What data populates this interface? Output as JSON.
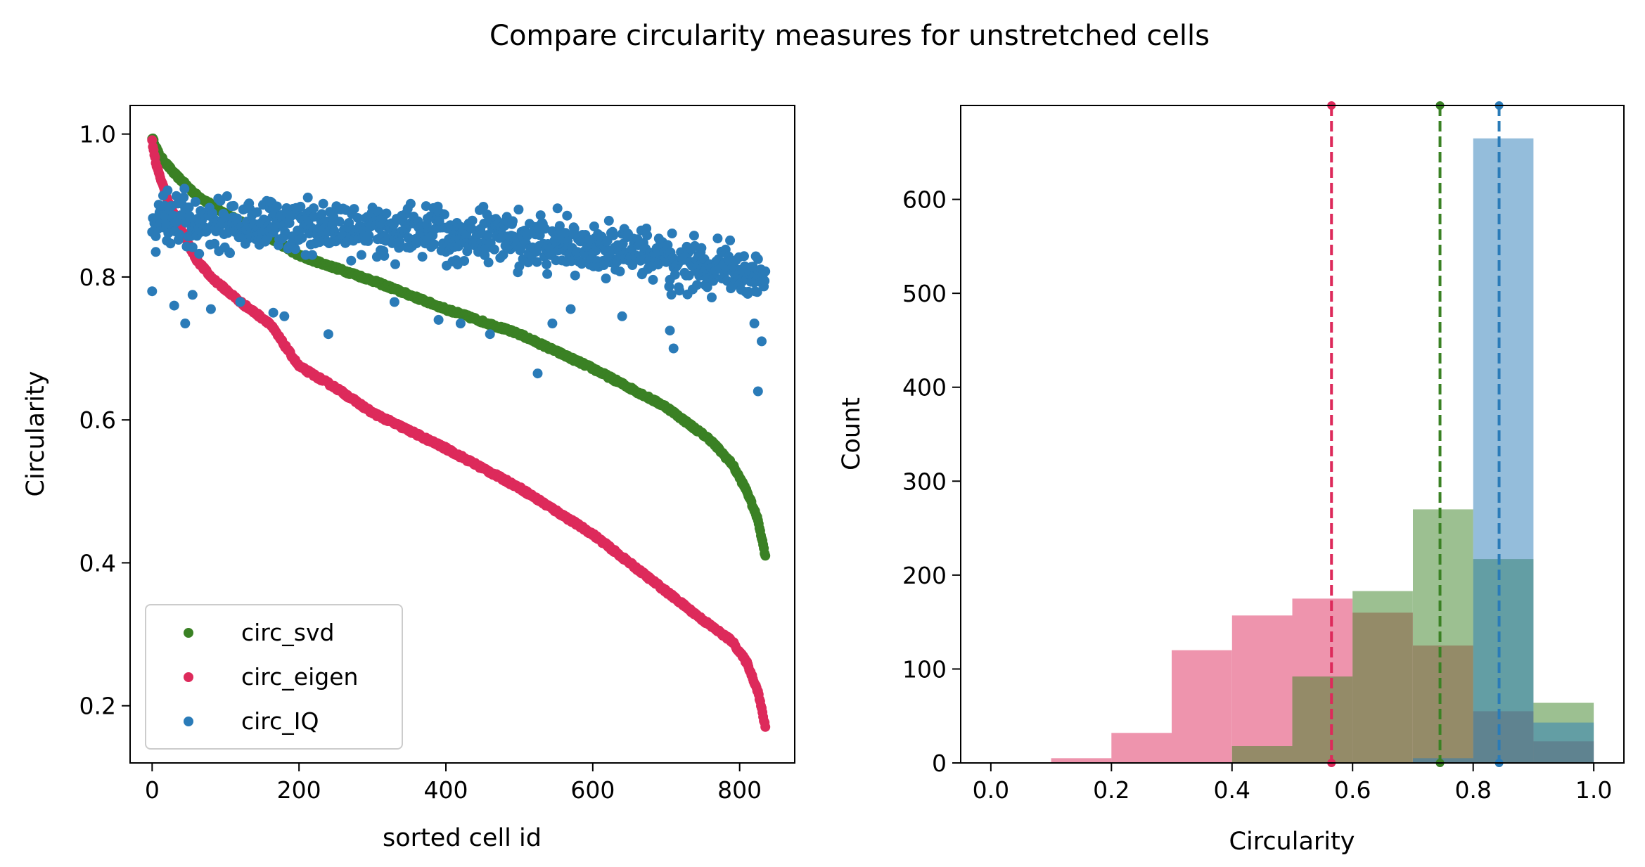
{
  "suptitle": "Compare circularity measures for unstretched cells",
  "colors": {
    "circ_svd": "#3a8124",
    "circ_eigen": "#dd2a5b",
    "circ_IQ": "#2a7bb8"
  },
  "chart_data": [
    {
      "type": "scatter",
      "xlabel": "sorted cell id",
      "ylabel": "Circularity",
      "xlim": [
        -30,
        875
      ],
      "ylim": [
        0.12,
        1.04
      ],
      "x_ticks": [
        0,
        200,
        400,
        600,
        800
      ],
      "y_ticks": [
        0.2,
        0.4,
        0.6,
        0.8,
        1.0
      ],
      "x_tick_labels": [
        "0",
        "200",
        "400",
        "600",
        "800"
      ],
      "y_tick_labels": [
        "0.2",
        "0.4",
        "0.6",
        "0.8",
        "1.0"
      ],
      "n_points": 836,
      "legend_position": "lower-left",
      "legend": [
        "circ_svd",
        "circ_eigen",
        "circ_IQ"
      ],
      "series": [
        {
          "name": "circ_svd",
          "color": "#3a8124",
          "sorted": true,
          "knots": [
            [
              0,
              0.995
            ],
            [
              10,
              0.97
            ],
            [
              30,
              0.945
            ],
            [
              60,
              0.915
            ],
            [
              100,
              0.888
            ],
            [
              150,
              0.862
            ],
            [
              200,
              0.83
            ],
            [
              300,
              0.795
            ],
            [
              400,
              0.755
            ],
            [
              500,
              0.72
            ],
            [
              600,
              0.672
            ],
            [
              700,
              0.618
            ],
            [
              760,
              0.572
            ],
            [
              790,
              0.538
            ],
            [
              810,
              0.5
            ],
            [
              825,
              0.46
            ],
            [
              836,
              0.405
            ]
          ]
        },
        {
          "name": "circ_eigen",
          "color": "#dd2a5b",
          "sorted": true,
          "knots": [
            [
              0,
              0.99
            ],
            [
              5,
              0.96
            ],
            [
              20,
              0.91
            ],
            [
              40,
              0.865
            ],
            [
              60,
              0.825
            ],
            [
              80,
              0.8
            ],
            [
              120,
              0.765
            ],
            [
              160,
              0.735
            ],
            [
              200,
              0.675
            ],
            [
              250,
              0.645
            ],
            [
              300,
              0.61
            ],
            [
              400,
              0.56
            ],
            [
              500,
              0.505
            ],
            [
              600,
              0.44
            ],
            [
              650,
              0.4
            ],
            [
              700,
              0.36
            ],
            [
              750,
              0.32
            ],
            [
              790,
              0.29
            ],
            [
              810,
              0.26
            ],
            [
              825,
              0.22
            ],
            [
              836,
              0.165
            ]
          ]
        },
        {
          "name": "circ_IQ",
          "color": "#2a7bb8",
          "sorted": false,
          "center_knots": [
            [
              0,
              0.88
            ],
            [
              50,
              0.875
            ],
            [
              100,
              0.875
            ],
            [
              200,
              0.87
            ],
            [
              300,
              0.865
            ],
            [
              400,
              0.86
            ],
            [
              500,
              0.852
            ],
            [
              600,
              0.838
            ],
            [
              700,
              0.825
            ],
            [
              800,
              0.81
            ],
            [
              836,
              0.79
            ]
          ],
          "spread": 0.035,
          "outliers": [
            [
              0,
              0.78
            ],
            [
              5,
              0.835
            ],
            [
              30,
              0.76
            ],
            [
              45,
              0.735
            ],
            [
              55,
              0.775
            ],
            [
              80,
              0.755
            ],
            [
              120,
              0.765
            ],
            [
              165,
              0.75
            ],
            [
              180,
              0.745
            ],
            [
              240,
              0.72
            ],
            [
              330,
              0.765
            ],
            [
              390,
              0.74
            ],
            [
              420,
              0.735
            ],
            [
              460,
              0.72
            ],
            [
              525,
              0.665
            ],
            [
              545,
              0.735
            ],
            [
              570,
              0.755
            ],
            [
              640,
              0.745
            ],
            [
              705,
              0.725
            ],
            [
              710,
              0.7
            ],
            [
              820,
              0.735
            ],
            [
              825,
              0.64
            ],
            [
              830,
              0.71
            ]
          ]
        }
      ]
    },
    {
      "type": "bar",
      "subtype": "histogram",
      "xlabel": "Circularity",
      "ylabel": "Count",
      "xlim": [
        -0.05,
        1.05
      ],
      "ylim": [
        0,
        700
      ],
      "x_ticks": [
        0.0,
        0.2,
        0.4,
        0.6,
        0.8,
        1.0
      ],
      "y_ticks": [
        0,
        100,
        200,
        300,
        400,
        500,
        600
      ],
      "x_tick_labels": [
        "0.0",
        "0.2",
        "0.4",
        "0.6",
        "0.8",
        "1.0"
      ],
      "y_tick_labels": [
        "0",
        "100",
        "200",
        "300",
        "400",
        "500",
        "600"
      ],
      "bin_edges": [
        0.0,
        0.1,
        0.2,
        0.3,
        0.4,
        0.5,
        0.6,
        0.7,
        0.8,
        0.9,
        1.0
      ],
      "series": [
        {
          "name": "circ_eigen",
          "color": "#dd2a5b",
          "opacity": 0.5,
          "values": [
            0,
            5,
            32,
            120,
            157,
            175,
            160,
            125,
            55,
            23
          ],
          "mean_line": 0.565
        },
        {
          "name": "circ_svd",
          "color": "#3a8124",
          "opacity": 0.5,
          "values": [
            0,
            0,
            0,
            0,
            18,
            92,
            183,
            270,
            217,
            64
          ],
          "mean_line": 0.745
        },
        {
          "name": "circ_IQ",
          "color": "#2a7bb8",
          "opacity": 0.5,
          "values": [
            0,
            0,
            0,
            0,
            0,
            0,
            0,
            5,
            665,
            43
          ],
          "mean_line": 0.843
        }
      ]
    }
  ]
}
